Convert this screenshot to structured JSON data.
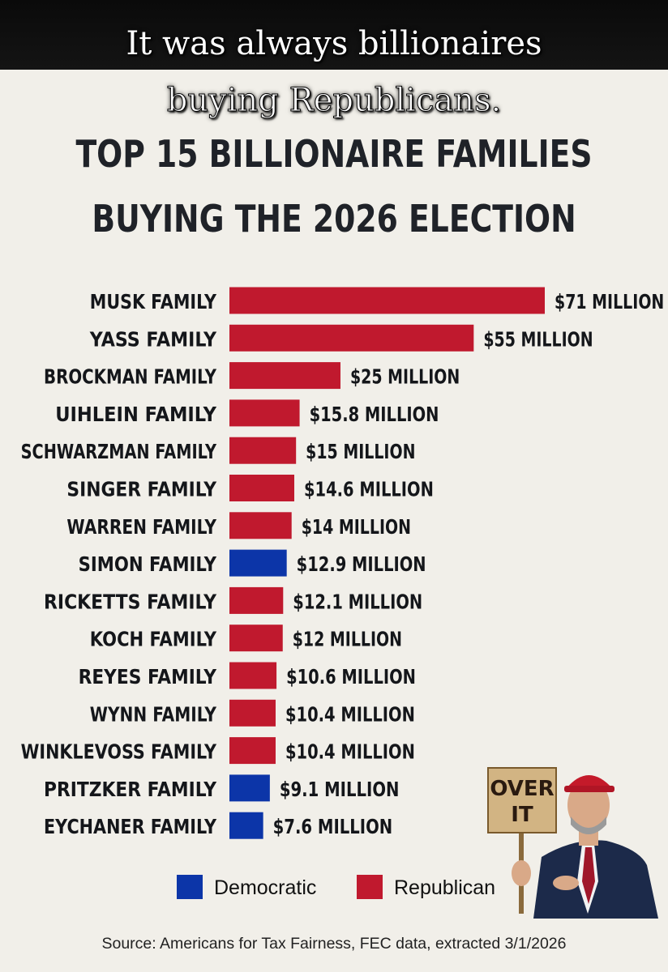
{
  "overlay_caption": {
    "line1": "It was always billionaires",
    "line2": "buying Republicans."
  },
  "headline": {
    "line1": "TOP 15 BILLIONAIRE FAMILIES",
    "line2": "BUYING THE 2026 ELECTION"
  },
  "colors": {
    "republican": "#c0192e",
    "democratic": "#0c35a8",
    "background": "#f1efe9"
  },
  "chart_data": {
    "type": "bar",
    "orientation": "horizontal",
    "categories": [
      "MUSK FAMILY",
      "YASS FAMILY",
      "BROCKMAN FAMILY",
      "UIHLEIN FAMILY",
      "SCHWARZMAN FAMILY",
      "SINGER FAMILY",
      "WARREN FAMILY",
      "SIMON FAMILY",
      "RICKETTS FAMILY",
      "KOCH FAMILY",
      "REYES FAMILY",
      "WYNN FAMILY",
      "WINKLEVOSS FAMILY",
      "PRITZKER FAMILY",
      "EYCHANER FAMILY"
    ],
    "values": [
      71,
      55,
      25,
      15.8,
      15,
      14.6,
      14,
      12.9,
      12.1,
      12,
      10.6,
      10.4,
      10.4,
      9.1,
      7.6
    ],
    "value_labels": [
      "$71 MILLION",
      "$55 MILLION",
      "$25 MILLION",
      "$15.8 MILLION",
      "$15 MILLION",
      "$14.6 MILLION",
      "$14 MILLION",
      "$12.9 MILLION",
      "$12.1 MILLION",
      "$12 MILLION",
      "$10.6 MILLION",
      "$10.4 MILLION",
      "$10.4 MILLION",
      "$9.1 MILLION",
      "$7.6 MILLION"
    ],
    "party": [
      "Republican",
      "Republican",
      "Republican",
      "Republican",
      "Republican",
      "Republican",
      "Republican",
      "Democratic",
      "Republican",
      "Republican",
      "Republican",
      "Republican",
      "Republican",
      "Democratic",
      "Democratic"
    ],
    "unit": "MILLION",
    "legend": [
      {
        "name": "Democratic",
        "color": "#0c35a8"
      },
      {
        "name": "Republican",
        "color": "#c0192e"
      }
    ],
    "legend_position": "bottom"
  },
  "sign": {
    "line1": "OVER",
    "line2": "IT"
  },
  "source": "Source: Americans for Tax Fairness, FEC data, extracted 3/1/2026"
}
